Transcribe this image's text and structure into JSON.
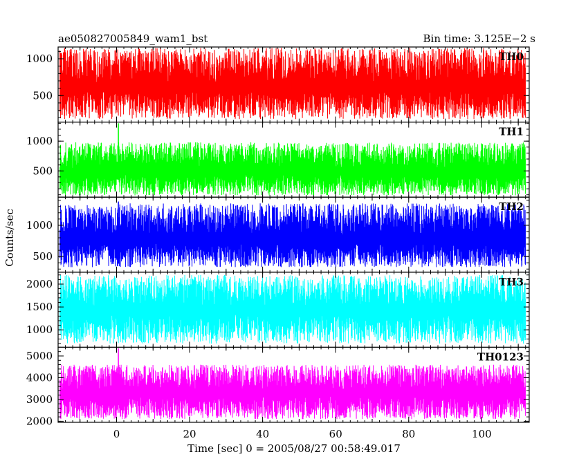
{
  "chart_data": {
    "type": "line",
    "title_left": "ae050827005849_wam1_bst",
    "title_right": "Bin time: 3.125E−2 s",
    "xlabel": "Time [sec] 0 = 2005/08/27 00:58:49.017",
    "ylabel": "Counts/sec",
    "xlim": [
      -16,
      113
    ],
    "x_ticks": [
      "0",
      "20",
      "40",
      "60",
      "80",
      "100"
    ],
    "x_data_range": [
      -15.5,
      112
    ],
    "panels": [
      {
        "name": "TH0",
        "color": "#ff0000",
        "ylim": [
          140,
          1160
        ],
        "y_ticks": [
          "500",
          "1000"
        ],
        "mean": 600,
        "low": 180,
        "high": 1150,
        "spike_at": null,
        "spike_value": null
      },
      {
        "name": "TH1",
        "color": "#00ff00",
        "ylim": [
          60,
          1320
        ],
        "y_ticks": [
          "500",
          "1000"
        ],
        "mean": 470,
        "low": 90,
        "high": 980,
        "spike_at": 0.5,
        "spike_value": 1300
      },
      {
        "name": "TH2",
        "color": "#0000ff",
        "ylim": [
          250,
          1450
        ],
        "y_ticks": [
          "500",
          "1000"
        ],
        "mean": 760,
        "low": 330,
        "high": 1350,
        "spike_at": 0.5,
        "spike_value": 1380
      },
      {
        "name": "TH3",
        "color": "#00ffff",
        "ylim": [
          620,
          2260
        ],
        "y_ticks": [
          "1000",
          "1500",
          "2000"
        ],
        "mean": 1400,
        "low": 700,
        "high": 2200,
        "spike_at": null,
        "spike_value": null
      },
      {
        "name": "TH0123",
        "color": "#ff00ff",
        "ylim": [
          1950,
          5400
        ],
        "y_ticks": [
          "2000",
          "3000",
          "4000",
          "5000"
        ],
        "mean": 3250,
        "low": 2100,
        "high": 4600,
        "spike_at": 0.5,
        "spike_value": 5350
      }
    ]
  }
}
